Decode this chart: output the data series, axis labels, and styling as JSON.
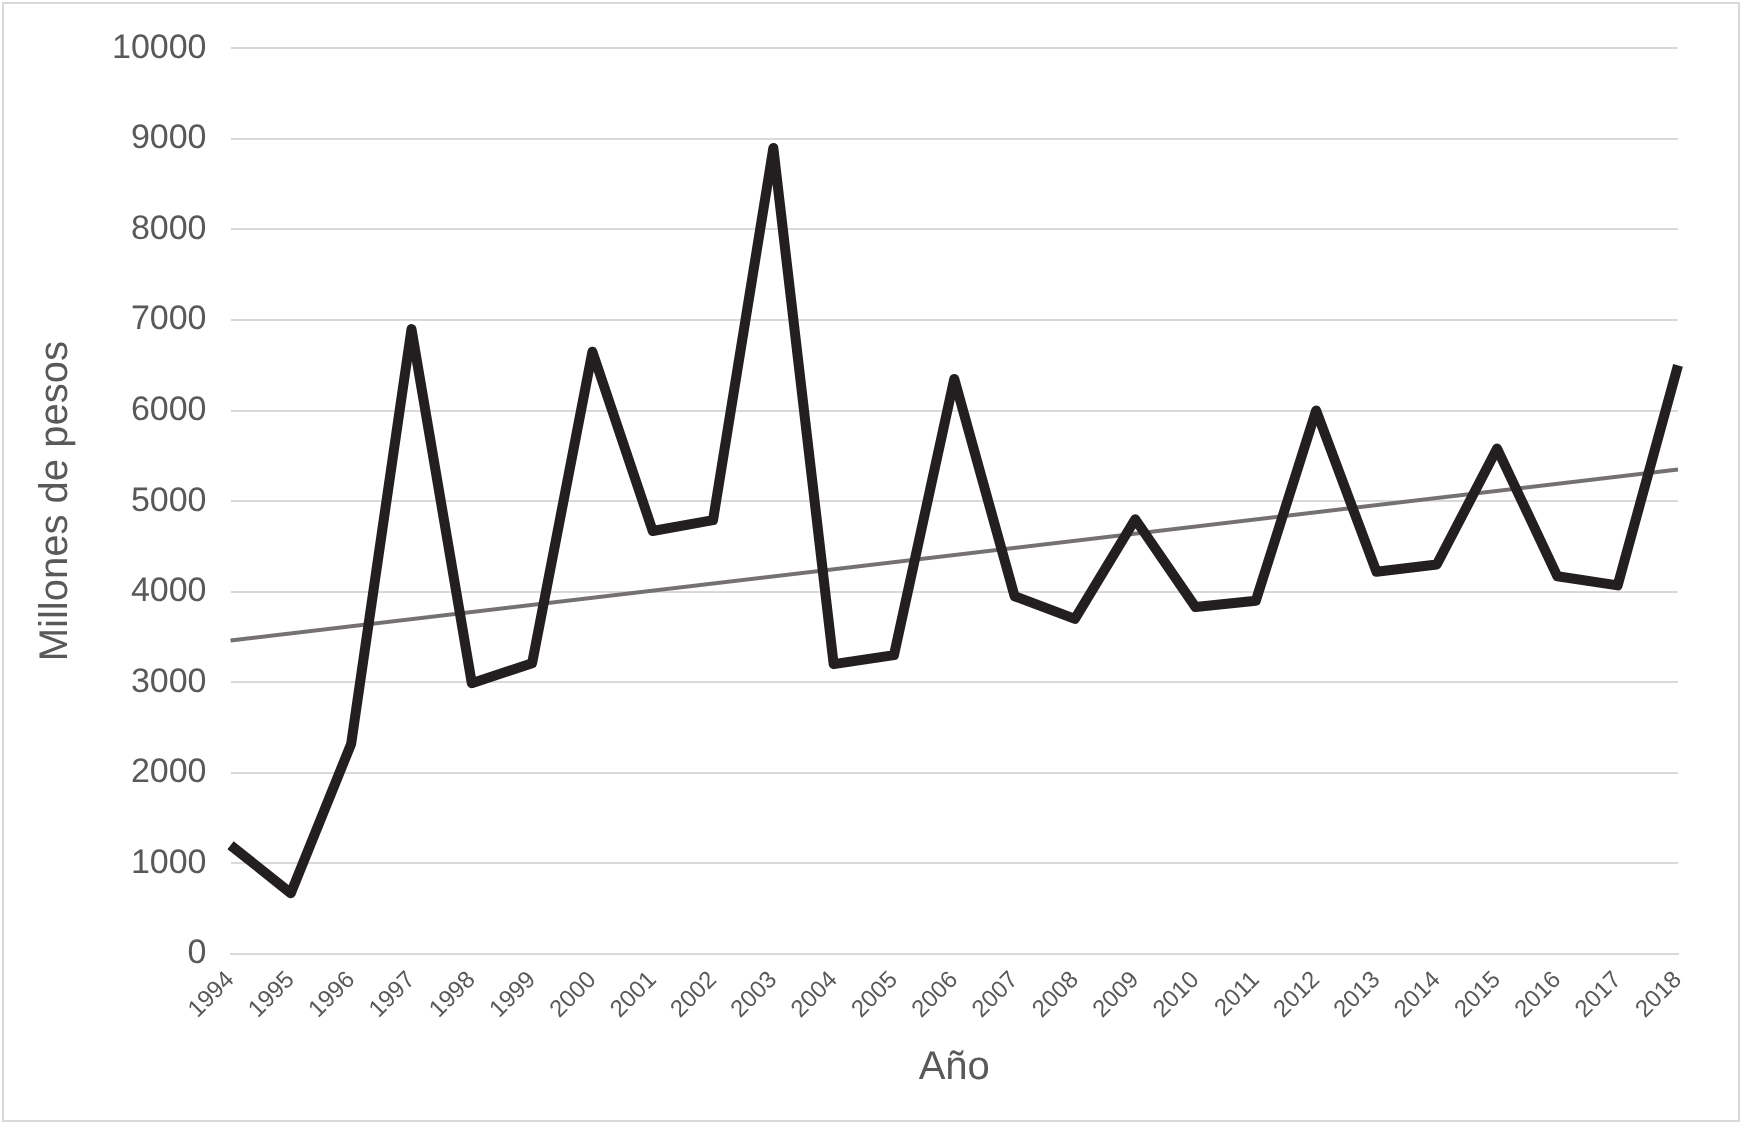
{
  "chart_data": {
    "type": "line",
    "xlabel": "Año",
    "ylabel": "Millones de pesos",
    "categories": [
      "1994",
      "1995",
      "1996",
      "1997",
      "1998",
      "1999",
      "2000",
      "2001",
      "2002",
      "2003",
      "2004",
      "2005",
      "2006",
      "2007",
      "2008",
      "2009",
      "2010",
      "2011",
      "2012",
      "2013",
      "2014",
      "2015",
      "2016",
      "2017",
      "2018"
    ],
    "series": [
      {
        "color": "#231f20",
        "values": [
          1200,
          670,
          2320,
          6900,
          2990,
          3210,
          6650,
          4670,
          4790,
          8900,
          3200,
          3300,
          6350,
          3950,
          3700,
          4800,
          3830,
          3900,
          6000,
          4220,
          4300,
          5580,
          4170,
          4070,
          6500
        ]
      },
      {
        "color": "#767171",
        "values": [
          3460,
          null,
          null,
          null,
          null,
          null,
          null,
          null,
          null,
          null,
          null,
          null,
          null,
          null,
          null,
          null,
          null,
          null,
          null,
          null,
          null,
          null,
          null,
          null,
          5350
        ]
      }
    ],
    "ylim": [
      0,
      10000
    ],
    "yticks": [
      0,
      1000,
      2000,
      3000,
      4000,
      5000,
      6000,
      7000,
      8000,
      9000,
      10000
    ],
    "grid": "y",
    "legend": false,
    "marker": "none",
    "line_style": "solid"
  }
}
